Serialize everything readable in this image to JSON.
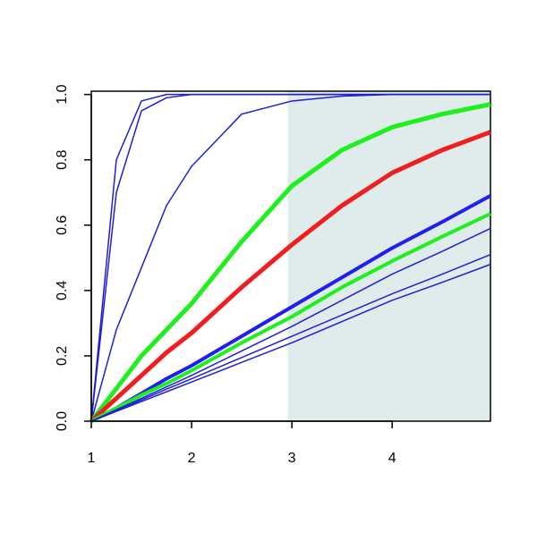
{
  "chart_data": {
    "type": "line",
    "x": [
      1,
      1.25,
      1.5,
      1.75,
      2,
      2.5,
      3,
      3.5,
      4,
      4.5,
      4.98
    ],
    "xlim": [
      1,
      4.98
    ],
    "ylim": [
      0,
      1.01
    ],
    "xticks": [
      1,
      2,
      3,
      4
    ],
    "yticks": [
      {
        "value": 0,
        "label": "0.0"
      },
      0.2,
      0.4,
      0.6,
      0.8,
      {
        "value": 1,
        "label": "1.0"
      }
    ],
    "highlight_x": [
      2.96,
      4.98
    ],
    "highlight_color": "#e0ecec",
    "series": [
      {
        "color": "#1f1fd6",
        "width": 1.5,
        "values": [
          0,
          0.8,
          0.98,
          1,
          1,
          1,
          1,
          1,
          1,
          1,
          1
        ]
      },
      {
        "color": "#1f1fd6",
        "width": 1.5,
        "values": [
          0,
          0.7,
          0.95,
          0.99,
          1,
          1,
          1,
          1,
          1,
          1,
          1
        ]
      },
      {
        "color": "#1f1fd6",
        "width": 1.5,
        "values": [
          0,
          0.28,
          0.47,
          0.66,
          0.78,
          0.94,
          0.98,
          0.995,
          1,
          1,
          1
        ]
      },
      {
        "color": "#1ef01e",
        "width": 5,
        "values": [
          0,
          0.1,
          0.2,
          0.28,
          0.36,
          0.55,
          0.72,
          0.83,
          0.9,
          0.94,
          0.97
        ]
      },
      {
        "color": "#f01e1e",
        "width": 5,
        "values": [
          0,
          0.07,
          0.14,
          0.21,
          0.27,
          0.41,
          0.54,
          0.66,
          0.76,
          0.83,
          0.885
        ]
      },
      {
        "color": "#1f1ff0",
        "width": 4,
        "values": [
          0,
          0.04,
          0.085,
          0.13,
          0.17,
          0.26,
          0.35,
          0.44,
          0.53,
          0.61,
          0.69
        ]
      },
      {
        "color": "#1ef01e",
        "width": 4,
        "values": [
          0,
          0.04,
          0.08,
          0.115,
          0.155,
          0.24,
          0.32,
          0.41,
          0.49,
          0.565,
          0.635
        ]
      },
      {
        "color": "#1f1fd6",
        "width": 1.5,
        "values": [
          0,
          0.035,
          0.07,
          0.105,
          0.14,
          0.215,
          0.29,
          0.37,
          0.45,
          0.52,
          0.59
        ]
      },
      {
        "color": "#1f1fd6",
        "width": 1.5,
        "values": [
          0,
          0.033,
          0.065,
          0.098,
          0.13,
          0.195,
          0.26,
          0.325,
          0.39,
          0.45,
          0.51
        ]
      },
      {
        "color": "#1f1fd6",
        "width": 1.5,
        "values": [
          0,
          0.03,
          0.06,
          0.09,
          0.12,
          0.18,
          0.24,
          0.305,
          0.37,
          0.425,
          0.48
        ]
      }
    ]
  }
}
